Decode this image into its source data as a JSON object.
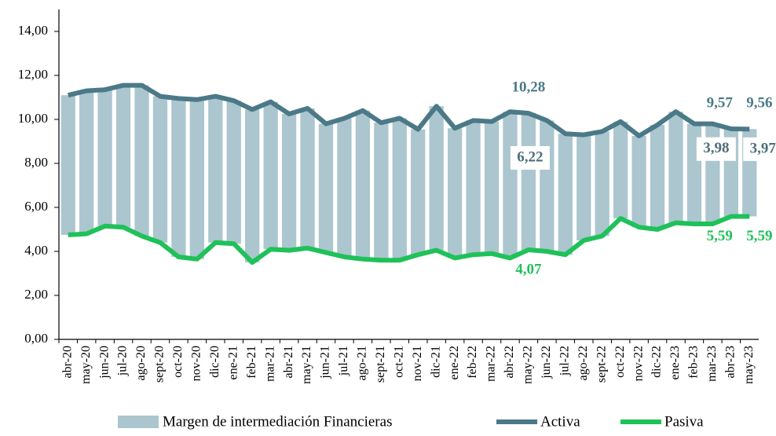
{
  "chart_data": {
    "type": "bar_line",
    "categories": [
      "abr-20",
      "may-20",
      "jun-20",
      "jul-20",
      "ago-20",
      "sept-20",
      "oct-20",
      "nov-20",
      "dic-20",
      "ene-21",
      "feb-21",
      "mar-21",
      "abr-21",
      "may-21",
      "jun-21",
      "jul-21",
      "ago-21",
      "sept-21",
      "oct-21",
      "nov-21",
      "dic-21",
      "ene-22",
      "feb-22",
      "mar-22",
      "abr-22",
      "may-22",
      "jun-22",
      "jul-22",
      "ago-22",
      "sept-22",
      "oct-22",
      "nov-22",
      "dic-22",
      "ene-23",
      "feb-23",
      "mar-23",
      "abr-23",
      "may-23"
    ],
    "series": [
      {
        "name": "Margen de intermediación Financieras",
        "type": "bar",
        "color": "#abc6cf",
        "label_color": "#4d6f7a",
        "values": [
          6.35,
          6.5,
          6.2,
          6.45,
          6.85,
          6.65,
          7.2,
          7.25,
          6.65,
          6.5,
          6.95,
          6.7,
          6.2,
          6.35,
          5.85,
          6.3,
          6.75,
          6.25,
          6.45,
          5.7,
          6.55,
          5.9,
          6.1,
          6.0,
          6.65,
          6.22,
          5.95,
          5.5,
          4.8,
          4.75,
          4.4,
          4.15,
          4.75,
          5.05,
          4.55,
          4.55,
          3.98,
          3.97
        ],
        "value_labels": [
          null,
          null,
          null,
          null,
          null,
          null,
          null,
          null,
          null,
          null,
          null,
          null,
          null,
          null,
          null,
          null,
          null,
          null,
          null,
          null,
          null,
          null,
          null,
          null,
          null,
          "6,22",
          null,
          null,
          null,
          null,
          null,
          null,
          null,
          null,
          null,
          null,
          "3,98",
          "3,97"
        ]
      },
      {
        "name": "Activa",
        "type": "line",
        "color": "#4b7987",
        "values": [
          11.1,
          11.3,
          11.35,
          11.55,
          11.55,
          11.05,
          10.95,
          10.9,
          11.05,
          10.85,
          10.45,
          10.8,
          10.25,
          10.5,
          9.8,
          10.05,
          10.4,
          9.85,
          10.05,
          9.55,
          10.6,
          9.6,
          9.95,
          9.9,
          10.35,
          10.28,
          9.95,
          9.35,
          9.3,
          9.45,
          9.9,
          9.25,
          9.75,
          10.35,
          9.8,
          9.8,
          9.57,
          9.56
        ],
        "value_labels": [
          null,
          null,
          null,
          null,
          null,
          null,
          null,
          null,
          null,
          null,
          null,
          null,
          null,
          null,
          null,
          null,
          null,
          null,
          null,
          null,
          null,
          null,
          null,
          null,
          null,
          "10,28",
          null,
          null,
          null,
          null,
          null,
          null,
          null,
          null,
          null,
          null,
          "9,57",
          "9,56"
        ]
      },
      {
        "name": "Pasiva",
        "type": "line",
        "color": "#1fc159",
        "values": [
          4.75,
          4.8,
          5.15,
          5.1,
          4.7,
          4.4,
          3.75,
          3.65,
          4.4,
          4.35,
          3.5,
          4.1,
          4.05,
          4.15,
          3.95,
          3.75,
          3.65,
          3.6,
          3.6,
          3.85,
          4.05,
          3.7,
          3.85,
          3.9,
          3.7,
          4.07,
          4.0,
          3.85,
          4.5,
          4.7,
          5.5,
          5.1,
          5.0,
          5.3,
          5.25,
          5.25,
          5.59,
          5.59
        ],
        "value_labels": [
          null,
          null,
          null,
          null,
          null,
          null,
          null,
          null,
          null,
          null,
          null,
          null,
          null,
          null,
          null,
          null,
          null,
          null,
          null,
          null,
          null,
          null,
          null,
          null,
          null,
          "4,07",
          null,
          null,
          null,
          null,
          null,
          null,
          null,
          null,
          null,
          null,
          "5,59",
          "5,59"
        ]
      }
    ],
    "ylim": [
      0,
      14
    ],
    "yticks": [
      {
        "value": 0,
        "label": "0,00"
      },
      {
        "value": 2,
        "label": "2,00"
      },
      {
        "value": 4,
        "label": "4,00"
      },
      {
        "value": 6,
        "label": "6,00"
      },
      {
        "value": 8,
        "label": "8,00"
      },
      {
        "value": 10,
        "label": "10,00"
      },
      {
        "value": 12,
        "label": "12,00"
      },
      {
        "value": 14,
        "label": "14,00"
      }
    ],
    "grid": false,
    "legend": "bottom"
  }
}
